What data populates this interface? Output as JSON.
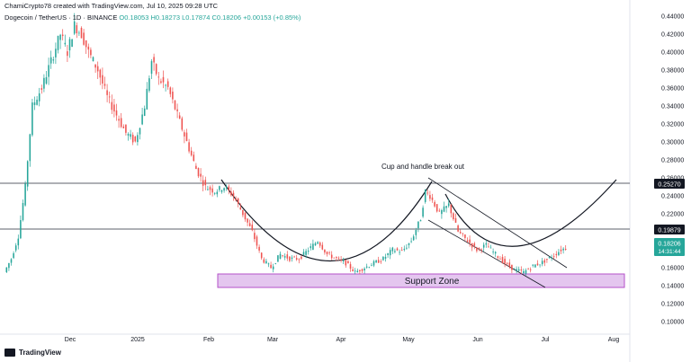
{
  "header": {
    "attribution": "ChamiCrypto78 created with TradingView.com, Jul 10, 2025 09:28 UTC",
    "symbol": "Dogecoin / TetherUS · 1D · BINANCE",
    "open": "O0.18053",
    "high": "H0.18273",
    "low": "L0.17874",
    "close": "C0.18206",
    "change": "+0.00153 (+0.85%)"
  },
  "footer": {
    "brand": "TradingView"
  },
  "colors": {
    "up": "#26a69a",
    "down": "#ef5350",
    "badge": "#131722",
    "price_badge": "#26a69a",
    "support": "#e4c6ef",
    "support_border": "#b452c9"
  },
  "chart_data": {
    "type": "candlestick",
    "title": "Dogecoin / TetherUS · 1D · BINANCE",
    "x_ticks": [
      "Dec",
      "2025",
      "Feb",
      "Mar",
      "Apr",
      "May",
      "Jun",
      "Jul",
      "Aug"
    ],
    "y_ticks": [
      "0.44000",
      "0.42000",
      "0.40000",
      "0.38000",
      "0.36000",
      "0.34000",
      "0.32000",
      "0.30000",
      "0.28000",
      "0.26000",
      "0.24000",
      "0.22000",
      "0.20000",
      "0.18000",
      "0.16000",
      "0.14000",
      "0.12000",
      "0.10000"
    ],
    "ylim": [
      0.09,
      0.45
    ],
    "horizontal_levels": [
      {
        "label": "0.25270",
        "value": 0.2527
      },
      {
        "label": "0.19879",
        "value": 0.19879
      }
    ],
    "last_price": {
      "label": "0.18206",
      "countdown": "14:31:44",
      "value": 0.18206
    },
    "support_zone": {
      "label": "Support Zone",
      "range": [
        0.133,
        0.148
      ]
    },
    "annotation": "Cup and handle break out",
    "price_path": [
      [
        0,
        0.155
      ],
      [
        3,
        0.17
      ],
      [
        6,
        0.195
      ],
      [
        9,
        0.25
      ],
      [
        12,
        0.34
      ],
      [
        16,
        0.36
      ],
      [
        20,
        0.39
      ],
      [
        24,
        0.42
      ],
      [
        27,
        0.4
      ],
      [
        30,
        0.43
      ],
      [
        33,
        0.42
      ],
      [
        36,
        0.4
      ],
      [
        40,
        0.38
      ],
      [
        44,
        0.35
      ],
      [
        48,
        0.33
      ],
      [
        52,
        0.31
      ],
      [
        56,
        0.3
      ],
      [
        60,
        0.34
      ],
      [
        63,
        0.39
      ],
      [
        66,
        0.37
      ],
      [
        70,
        0.36
      ],
      [
        74,
        0.33
      ],
      [
        78,
        0.3
      ],
      [
        82,
        0.27
      ],
      [
        86,
        0.25
      ],
      [
        90,
        0.245
      ],
      [
        94,
        0.25
      ],
      [
        98,
        0.24
      ],
      [
        102,
        0.22
      ],
      [
        106,
        0.2
      ],
      [
        110,
        0.17
      ],
      [
        114,
        0.16
      ],
      [
        118,
        0.175
      ],
      [
        122,
        0.17
      ],
      [
        126,
        0.17
      ],
      [
        130,
        0.18
      ],
      [
        134,
        0.19
      ],
      [
        138,
        0.175
      ],
      [
        142,
        0.17
      ],
      [
        146,
        0.165
      ],
      [
        150,
        0.155
      ],
      [
        154,
        0.16
      ],
      [
        158,
        0.165
      ],
      [
        162,
        0.17
      ],
      [
        166,
        0.18
      ],
      [
        170,
        0.178
      ],
      [
        174,
        0.19
      ],
      [
        178,
        0.215
      ],
      [
        180,
        0.245
      ],
      [
        182,
        0.24
      ],
      [
        186,
        0.22
      ],
      [
        190,
        0.23
      ],
      [
        194,
        0.2
      ],
      [
        198,
        0.19
      ],
      [
        202,
        0.18
      ],
      [
        206,
        0.185
      ],
      [
        210,
        0.175
      ],
      [
        214,
        0.165
      ],
      [
        218,
        0.158
      ],
      [
        222,
        0.155
      ],
      [
        226,
        0.162
      ],
      [
        230,
        0.166
      ],
      [
        234,
        0.172
      ],
      [
        238,
        0.18
      ],
      [
        240,
        0.182
      ]
    ]
  }
}
